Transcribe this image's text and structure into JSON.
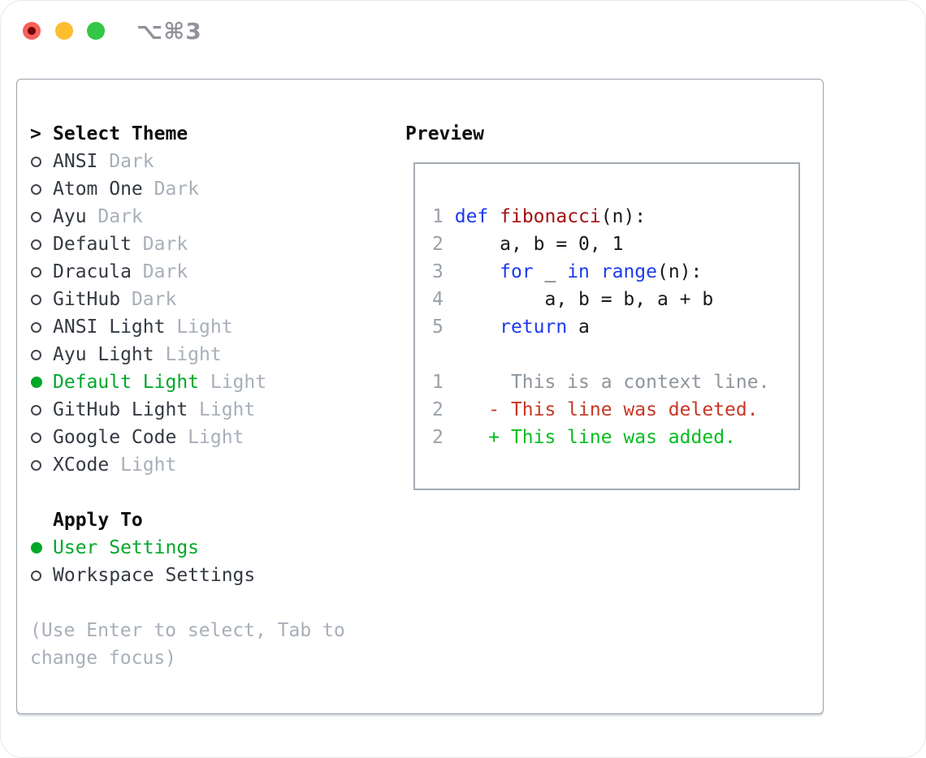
{
  "window": {
    "title": "⌥⌘3"
  },
  "titlebar": {
    "buttons": [
      {
        "name": "close-button",
        "color": "#f8605a"
      },
      {
        "name": "minimize-button",
        "color": "#fcbd2e"
      },
      {
        "name": "zoom-button",
        "color": "#32c746"
      }
    ]
  },
  "colors": {
    "accent_green": "#00a82a",
    "keyword_blue": "#1b3aee",
    "function_red": "#a51111",
    "diff_deleted_red": "#c83723",
    "diff_added_green": "#05bd20",
    "muted_gray": "#a8afb9",
    "line_number_gray": "#9aa1aa",
    "panel_border": "#99a2ac"
  },
  "theme_picker": {
    "marker": ">",
    "header": "Select Theme",
    "items": [
      {
        "name": "ANSI",
        "variant": "Dark",
        "selected": false
      },
      {
        "name": "Atom One",
        "variant": "Dark",
        "selected": false
      },
      {
        "name": "Ayu",
        "variant": "Dark",
        "selected": false
      },
      {
        "name": "Default",
        "variant": "Dark",
        "selected": false
      },
      {
        "name": "Dracula",
        "variant": "Dark",
        "selected": false
      },
      {
        "name": "GitHub",
        "variant": "Dark",
        "selected": false
      },
      {
        "name": "ANSI Light",
        "variant": "Light",
        "selected": false
      },
      {
        "name": "Ayu Light",
        "variant": "Light",
        "selected": false
      },
      {
        "name": "Default Light",
        "variant": "Light",
        "selected": true
      },
      {
        "name": "GitHub Light",
        "variant": "Light",
        "selected": false
      },
      {
        "name": "Google Code",
        "variant": "Light",
        "selected": false
      },
      {
        "name": "XCode",
        "variant": "Light",
        "selected": false
      }
    ]
  },
  "apply_to": {
    "header": "Apply To",
    "options": [
      {
        "label": "User Settings",
        "selected": true
      },
      {
        "label": "Workspace Settings",
        "selected": false
      }
    ]
  },
  "hint": {
    "lines": [
      "(Use Enter to select, Tab to",
      "change focus)"
    ]
  },
  "preview": {
    "header": "Preview",
    "lines": [
      {
        "name": "code-line-1",
        "segments": [
          {
            "style": "num",
            "text": "1"
          },
          {
            "style": "plain",
            "text": " "
          },
          {
            "style": "kw",
            "text": "def"
          },
          {
            "style": "plain",
            "text": " "
          },
          {
            "style": "fn",
            "text": "fibonacci"
          },
          {
            "style": "plain",
            "text": "(n):"
          }
        ]
      },
      {
        "name": "code-line-2",
        "segments": [
          {
            "style": "num",
            "text": "2"
          },
          {
            "style": "plain",
            "text": "     a, b = 0, 1"
          }
        ]
      },
      {
        "name": "code-line-3",
        "segments": [
          {
            "style": "num",
            "text": "3"
          },
          {
            "style": "plain",
            "text": "     "
          },
          {
            "style": "kw",
            "text": "for"
          },
          {
            "style": "plain",
            "text": " _ "
          },
          {
            "style": "kw",
            "text": "in"
          },
          {
            "style": "plain",
            "text": " "
          },
          {
            "style": "kw",
            "text": "range"
          },
          {
            "style": "plain",
            "text": "(n):"
          }
        ]
      },
      {
        "name": "code-line-4",
        "segments": [
          {
            "style": "num",
            "text": "4"
          },
          {
            "style": "plain",
            "text": "         a, b = b, a + b"
          }
        ]
      },
      {
        "name": "code-line-5",
        "segments": [
          {
            "style": "num",
            "text": "5"
          },
          {
            "style": "plain",
            "text": "     "
          },
          {
            "style": "kw",
            "text": "return"
          },
          {
            "style": "plain",
            "text": " a"
          }
        ]
      },
      {
        "name": "blank-line",
        "segments": []
      },
      {
        "name": "diff-context-line",
        "segments": [
          {
            "style": "num",
            "text": "1"
          },
          {
            "style": "ctx",
            "text": "      This is a context line."
          }
        ]
      },
      {
        "name": "diff-deleted-line",
        "segments": [
          {
            "style": "num",
            "text": "2"
          },
          {
            "style": "del",
            "text": "    - This line was deleted."
          }
        ]
      },
      {
        "name": "diff-added-line",
        "segments": [
          {
            "style": "num",
            "text": "2"
          },
          {
            "style": "add",
            "text": "    + This line was added."
          }
        ]
      }
    ]
  }
}
